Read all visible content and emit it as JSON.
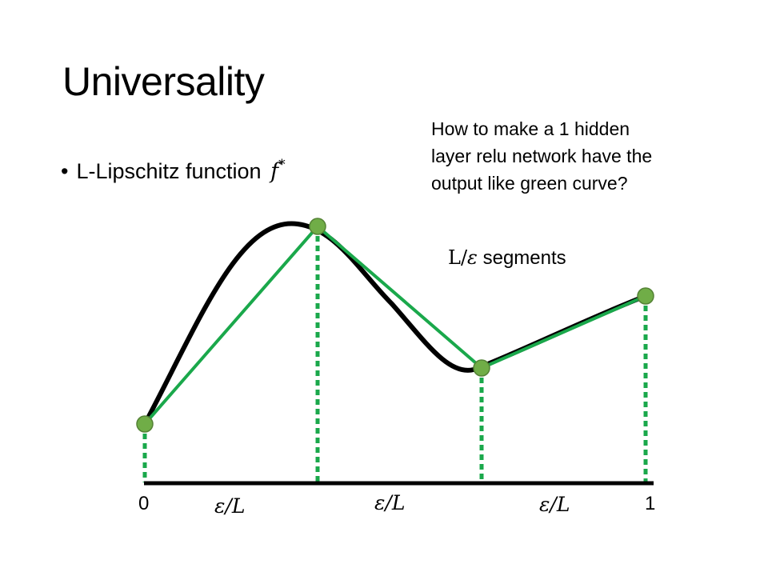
{
  "slide": {
    "title": "Universality",
    "bullet": {
      "marker": "•",
      "text": "L-Lipschitz function",
      "symbol": "f",
      "superscript": "*"
    },
    "note_lines": [
      "How to make a 1 hidden",
      "layer relu network have the",
      "output like green curve?"
    ],
    "segments_label": {
      "math_prefix": "L/",
      "math_symbol": "ε",
      "text": " segments"
    }
  },
  "axis": {
    "start_label": "0",
    "end_label": "1",
    "interval_labels": [
      "ε/L",
      "ε/L",
      "ε/L"
    ]
  },
  "colors": {
    "target_curve": "#000000",
    "approx_curve": "#1aa84b",
    "dot_fill": "#70ad47",
    "dot_stroke": "#548235",
    "axis": "#000000"
  }
}
